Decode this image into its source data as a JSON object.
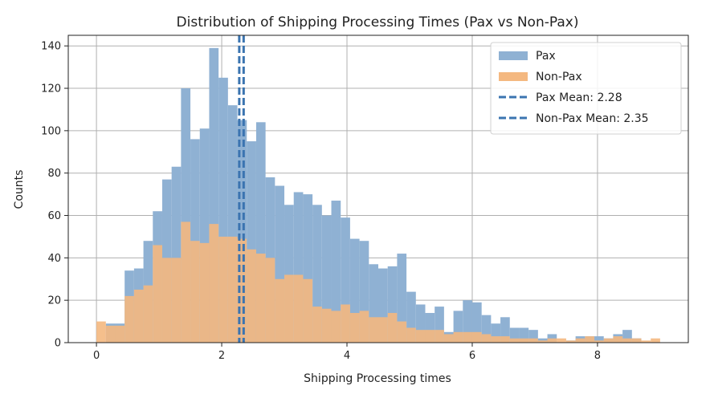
{
  "chart_data": {
    "type": "bar",
    "title": "Distribution of Shipping Processing Times (Pax vs Non-Pax)",
    "xlabel": "Shipping Processing times",
    "ylabel": "Counts",
    "xlim": [
      -0.45,
      9.45
    ],
    "ylim": [
      0,
      145
    ],
    "xticks": [
      0,
      2,
      4,
      6,
      8
    ],
    "yticks": [
      0,
      20,
      40,
      60,
      80,
      100,
      120,
      140
    ],
    "grid": true,
    "legend_position": "top-right",
    "bin_start": 0.0,
    "bin_width": 0.15,
    "series": [
      {
        "name": "Pax",
        "color": "#8fb1d3",
        "counts": [
          0,
          9,
          9,
          34,
          35,
          48,
          62,
          77,
          83,
          120,
          96,
          101,
          139,
          125,
          112,
          105,
          95,
          104,
          78,
          74,
          65,
          71,
          70,
          65,
          60,
          67,
          59,
          49,
          48,
          37,
          35,
          36,
          42,
          24,
          18,
          14,
          17,
          5,
          15,
          20,
          19,
          13,
          9,
          12,
          7,
          7,
          6,
          2,
          4,
          0,
          1,
          3,
          3,
          3,
          2,
          4,
          6,
          2,
          0,
          0
        ]
      },
      {
        "name": "Non-Pax",
        "color": "#f4b880",
        "counts": [
          10,
          8,
          8,
          22,
          25,
          27,
          46,
          40,
          40,
          57,
          48,
          47,
          56,
          50,
          50,
          49,
          44,
          42,
          40,
          30,
          32,
          32,
          30,
          17,
          16,
          15,
          18,
          14,
          15,
          12,
          12,
          14,
          10,
          7,
          6,
          6,
          6,
          4,
          5,
          5,
          5,
          4,
          3,
          3,
          2,
          2,
          2,
          1,
          2,
          2,
          1,
          2,
          3,
          1,
          2,
          3,
          2,
          2,
          1,
          2
        ]
      }
    ],
    "mean_lines": [
      {
        "name": "Pax Mean: 2.28",
        "value": 2.28,
        "color": "#3b74b0"
      },
      {
        "name": "Non-Pax Mean: 2.35",
        "value": 2.35,
        "color": "#3b74b0"
      }
    ]
  }
}
